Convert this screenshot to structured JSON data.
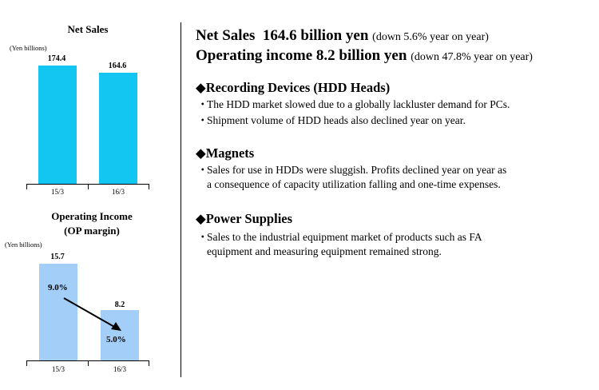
{
  "charts": {
    "net_sales": {
      "title": "Net Sales",
      "unit": "(Yen billions)",
      "categories": [
        "15/3",
        "16/3"
      ],
      "values": [
        "174.4",
        "164.6"
      ]
    },
    "operating_income": {
      "title_line1": "Operating Income",
      "title_line2": "(OP margin)",
      "unit": "(Yen billions)",
      "categories": [
        "15/3",
        "16/3"
      ],
      "values": [
        "15.7",
        "8.2"
      ],
      "margins": [
        "9.0%",
        "5.0%"
      ]
    }
  },
  "chart_data": [
    {
      "type": "bar",
      "title": "Net Sales",
      "ylabel": "(Yen billions)",
      "categories": [
        "15/3",
        "16/3"
      ],
      "values": [
        174.4,
        164.6
      ],
      "color": "#13c6f2"
    },
    {
      "type": "bar",
      "title": "Operating Income (OP margin)",
      "ylabel": "(Yen billions)",
      "categories": [
        "15/3",
        "16/3"
      ],
      "values": [
        15.7,
        8.2
      ],
      "margins_percent": [
        9.0,
        5.0
      ],
      "color": "#a3cef7"
    }
  ],
  "summary": {
    "net_sales_main": "Net Sales  164.6 billion yen",
    "net_sales_sub": "(down 5.6% year on year)",
    "op_income_main": "Operating income 8.2 billion yen",
    "op_income_sub": "(down 47.8% year on year)"
  },
  "sections": [
    {
      "title": "◆Recording Devices (HDD Heads)",
      "bullets": [
        {
          "marker": "・",
          "line1": "The HDD market slowed due to a globally lackluster demand for PCs.",
          "line2": ""
        },
        {
          "marker": "・",
          "line1": "Shipment volume of HDD heads also declined year on year.",
          "line2": ""
        }
      ]
    },
    {
      "title": "◆Magnets",
      "bullets": [
        {
          "marker": "・",
          "line1": "Sales for use in HDDs were sluggish. Profits declined year on year as",
          "line2": "a consequence of capacity utilization falling and one-time expenses."
        }
      ]
    },
    {
      "title": "◆Power Supplies",
      "bullets": [
        {
          "marker": "・",
          "line1": "Sales to the industrial equipment market of products such as FA",
          "line2": "equipment and measuring equipment remained strong."
        }
      ]
    }
  ]
}
